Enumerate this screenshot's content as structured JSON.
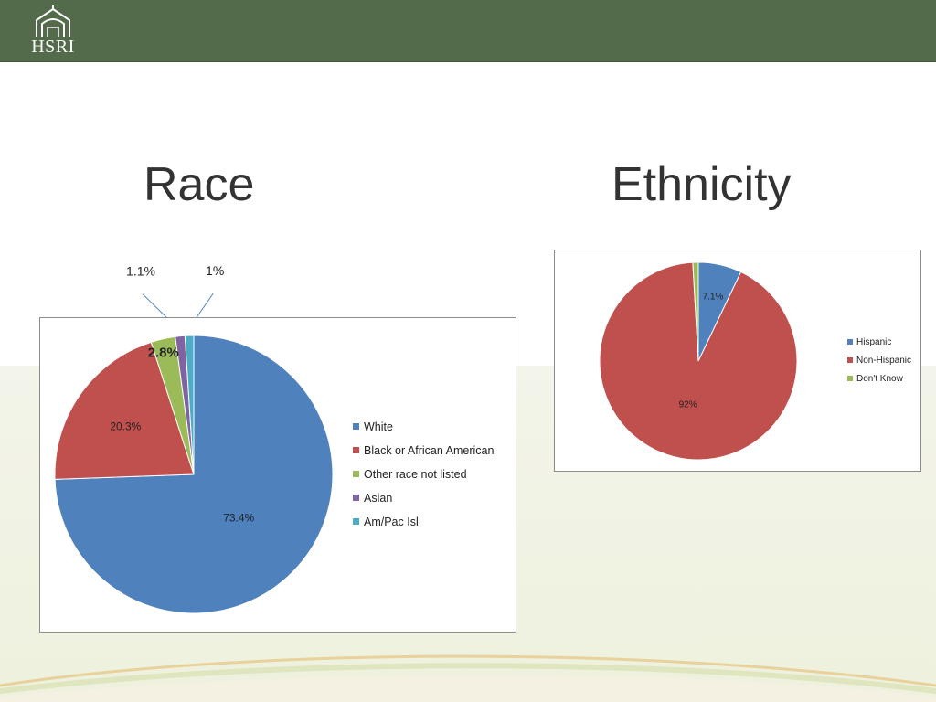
{
  "header": {
    "logo_text": "HSRI"
  },
  "titles": {
    "race": "Race",
    "ethnicity": "Ethnicity"
  },
  "chart_data": [
    {
      "type": "pie",
      "title": "Race",
      "categories": [
        "White",
        "Black or African American",
        "Other race not listed",
        "Asian",
        "Am/Pac Isl"
      ],
      "values": [
        73.4,
        20.3,
        2.8,
        1.1,
        1.0
      ],
      "data_labels": [
        "73.4%",
        "20.3%",
        "2.8%",
        "1.1%",
        "1%"
      ],
      "colors": [
        "#4f81bd",
        "#c0504d",
        "#9bbb59",
        "#8064a2",
        "#4bacc6"
      ],
      "legend": "right"
    },
    {
      "type": "pie",
      "title": "Ethnicity",
      "categories": [
        "Hispanic",
        "Non-Hispanic",
        "Don't Know"
      ],
      "values": [
        7.1,
        92,
        0.9
      ],
      "data_labels": [
        "7.1%",
        "92%",
        ""
      ],
      "colors": [
        "#4f81bd",
        "#c0504d",
        "#9bbb59"
      ],
      "legend": "right"
    }
  ]
}
